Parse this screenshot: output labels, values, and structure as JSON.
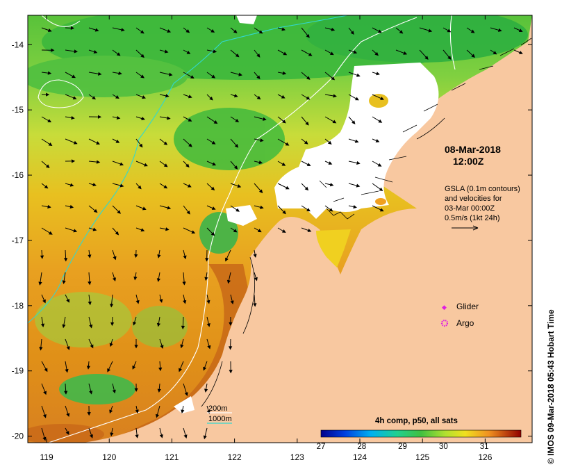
{
  "map": {
    "lon_ticks": [
      "119",
      "120",
      "121",
      "122",
      "123",
      "124",
      "125",
      "126"
    ],
    "lat_ticks": [
      "-14",
      "-15",
      "-16",
      "-17",
      "-18",
      "-19",
      "-20"
    ],
    "lon_range": [
      118.7,
      126.75
    ],
    "lat_range": [
      -20.1,
      -13.55
    ]
  },
  "header": {
    "date": "08-Mar-2018",
    "time": "12:00Z"
  },
  "velocity_note": {
    "line1": "GSLA (0.1m contours)",
    "line2": "and velocities for",
    "line3": "03-Mar 00:00Z",
    "line4": "0.5m/s (1kt 24h)"
  },
  "legend": {
    "glider": "Glider",
    "argo": "Argo",
    "glider_color": "#e020e0",
    "argo_color": "#e020e0"
  },
  "bathymetry": {
    "depth_200": "200m",
    "depth_1000": "1000m",
    "color_200": "#ffffff",
    "color_1000": "#30d8d0"
  },
  "colorbar": {
    "title": "4h comp, p50, all sats",
    "ticks": [
      "27",
      "28",
      "29",
      "30",
      "31"
    ],
    "range": [
      27,
      31.9
    ]
  },
  "credit": "© IMOS 09-Mar-2018 05:43 Hobart Time",
  "colors": {
    "land": "#f8c8a0",
    "cloud": "#ffffff"
  }
}
